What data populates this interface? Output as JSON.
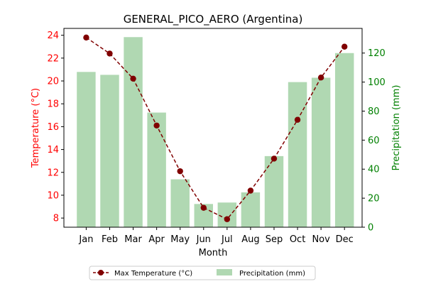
{
  "chart_data": {
    "type": "bar+line",
    "title": "GENERAL_PICO_AERO (Argentina)",
    "xlabel": "Month",
    "categories": [
      "Jan",
      "Feb",
      "Mar",
      "Apr",
      "May",
      "Jun",
      "Jul",
      "Aug",
      "Sep",
      "Oct",
      "Nov",
      "Dec"
    ],
    "series": [
      {
        "name": "Max Temperature (°C)",
        "kind": "line",
        "axis": "left",
        "color": "#800000",
        "values": [
          23.8,
          22.4,
          20.2,
          16.1,
          12.1,
          8.9,
          7.9,
          10.4,
          13.2,
          16.6,
          20.3,
          23.0
        ]
      },
      {
        "name": "Precipitation (mm)",
        "kind": "bar",
        "axis": "right",
        "color": "#b0d8b2",
        "values": [
          107,
          105,
          131,
          79,
          33,
          16,
          17,
          24,
          49,
          100,
          103,
          120
        ]
      }
    ],
    "y_left": {
      "label": "Temperature (°C)",
      "color": "#ff0000",
      "ylim": [
        7.2,
        24.6
      ],
      "ticks": [
        8,
        10,
        12,
        14,
        16,
        18,
        20,
        22,
        24
      ]
    },
    "y_right": {
      "label": "Precipitation (mm)",
      "color": "#008000",
      "ylim": [
        0,
        137
      ],
      "ticks": [
        0,
        20,
        40,
        60,
        80,
        100,
        120
      ]
    },
    "legend_placement": "bottom-center",
    "grid": false
  }
}
